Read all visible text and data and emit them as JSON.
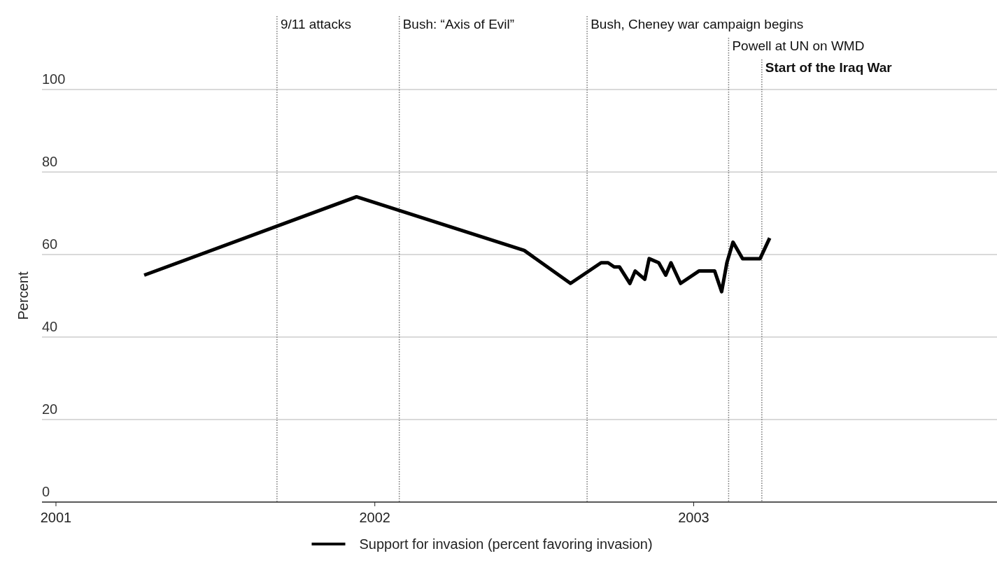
{
  "chart_data": {
    "type": "line",
    "ylabel": "Percent",
    "xlim": [
      "2000-12-16",
      "2003-12-15"
    ],
    "ylim": [
      0,
      100
    ],
    "yticks": [
      0,
      20,
      40,
      60,
      80,
      100
    ],
    "xticks": [
      {
        "value": "2001",
        "label": "2001"
      },
      {
        "value": "2002",
        "label": "2002"
      },
      {
        "value": "2003",
        "label": "2003"
      }
    ],
    "grid": "y",
    "legend": "bottom",
    "line_style": "solid",
    "marker": "none",
    "series": [
      {
        "name": "Support for invasion (percent favoring invasion)",
        "color": "#000000",
        "x": [
          "2001-04-12",
          "2001-12-11",
          "2002-06-21",
          "2002-08-13",
          "2002-09-17",
          "2002-09-25",
          "2002-10-02",
          "2002-10-08",
          "2002-10-20",
          "2002-10-26",
          "2002-11-06",
          "2002-11-11",
          "2002-11-22",
          "2002-11-30",
          "2002-12-06",
          "2002-12-17",
          "2003-01-07",
          "2003-01-25",
          "2003-02-02",
          "2003-02-08",
          "2003-02-15",
          "2003-02-26",
          "2003-03-18",
          "2003-03-29"
        ],
        "values": [
          55,
          74,
          61,
          53,
          58,
          58,
          57,
          57,
          53,
          56,
          54,
          59,
          58,
          55,
          58,
          53,
          56,
          56,
          51,
          58,
          63,
          59,
          59,
          64
        ]
      }
    ],
    "ref_lines": [
      {
        "axis": "x",
        "value": "2001-09-11",
        "label": "9/11 attacks"
      },
      {
        "axis": "x",
        "value": "2002-01-29",
        "label": "Bush: “Axis of Evil”"
      },
      {
        "axis": "x",
        "value": "2002-09-01",
        "label": "Bush, Cheney war campaign begins"
      },
      {
        "axis": "x",
        "value": "2003-02-10",
        "label": "Powell at UN on WMD"
      },
      {
        "axis": "x",
        "value": "2003-03-20",
        "label": "Start of the Iraq War"
      }
    ]
  }
}
